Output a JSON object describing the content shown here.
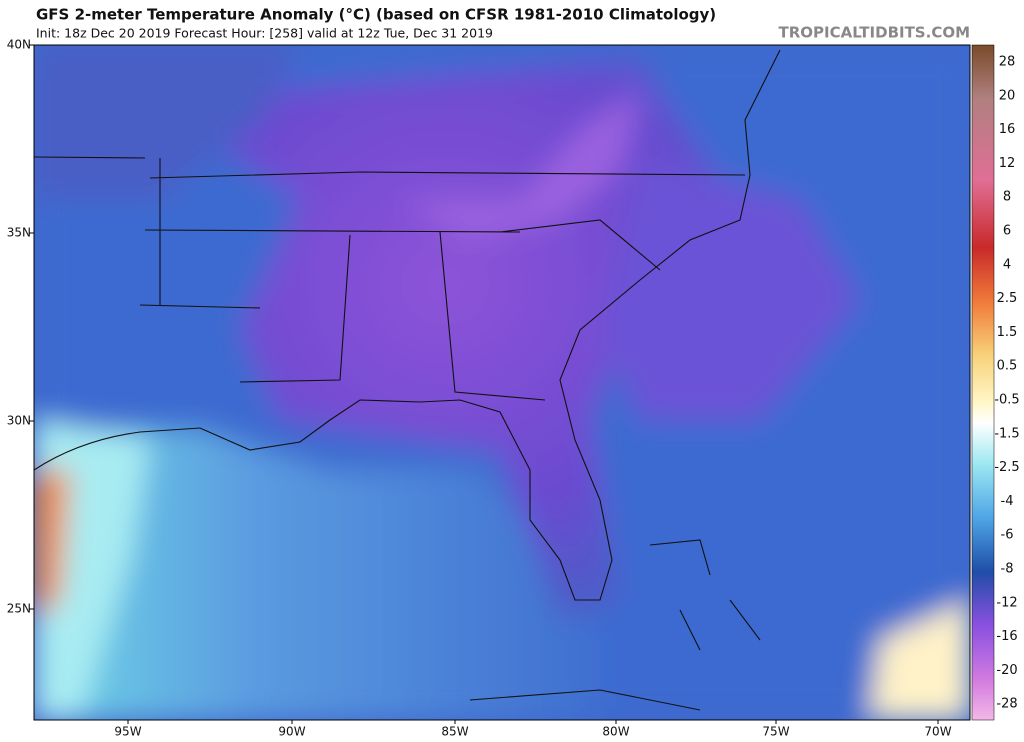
{
  "header": {
    "title": "GFS 2-meter Temperature Anomaly (°C) (based on CFSR 1981-2010 Climatology)",
    "subtitle": "Init: 18z Dec 20 2019   Forecast Hour: [258]   valid at 12z Tue, Dec 31 2019",
    "watermark": "TROPICALTIDBITS.COM"
  },
  "map": {
    "lat_labels": [
      "40N",
      "35N",
      "30N",
      "25N"
    ],
    "lon_labels": [
      "95W",
      "90W",
      "85W",
      "80W",
      "75W",
      "70W"
    ]
  },
  "colorbar": {
    "labels": [
      "28",
      "20",
      "16",
      "12",
      "8",
      "6",
      "4",
      "2.5",
      "1.5",
      "0.5",
      "-0.5",
      "-1.5",
      "-2.5",
      "-4",
      "-6",
      "-8",
      "-12",
      "-16",
      "-20",
      "-28"
    ]
  }
}
